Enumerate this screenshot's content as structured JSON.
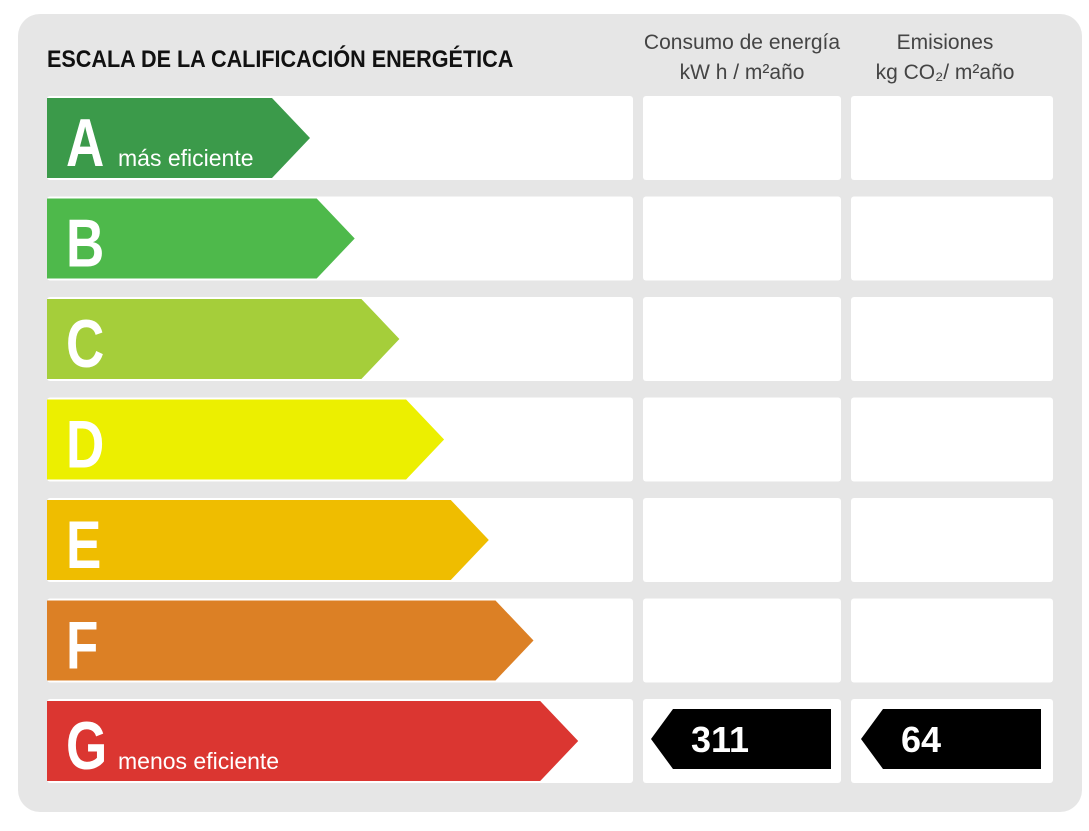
{
  "title": "ESCALA DE LA CALIFICACIÓN ENERGÉTICA",
  "columns": [
    {
      "heading": "Consumo de energía",
      "unit": "kW h / m²año"
    },
    {
      "heading": "Emisiones",
      "unit": "kg CO₂/ m²año"
    }
  ],
  "ratings": [
    {
      "letter": "A",
      "label": "más eficiente",
      "color": "#3b9a4a"
    },
    {
      "letter": "B",
      "color": "#4eb94b"
    },
    {
      "letter": "C",
      "color": "#a5ce3a"
    },
    {
      "letter": "D",
      "color": "#ecef00"
    },
    {
      "letter": "E",
      "color": "#efbd00"
    },
    {
      "letter": "F",
      "color": "#dc8025"
    },
    {
      "letter": "G",
      "label": "menos eficiente",
      "color": "#db3631"
    }
  ],
  "result": {
    "rating_index": 6,
    "energy": 311,
    "emissions": 64
  }
}
